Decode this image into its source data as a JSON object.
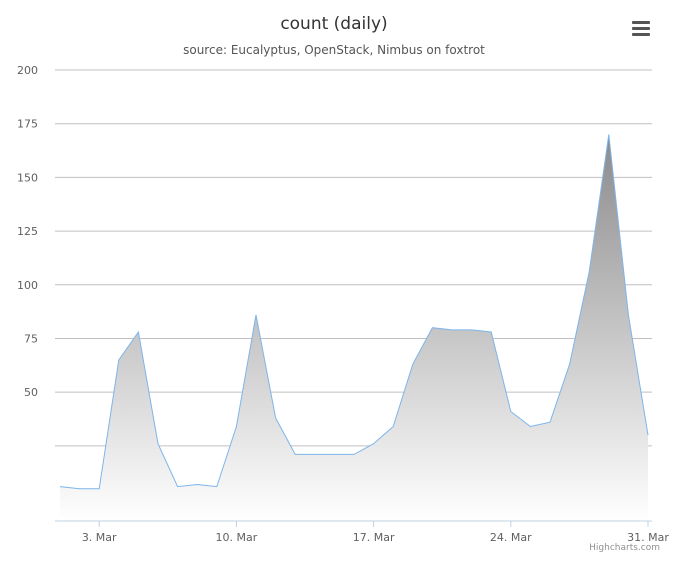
{
  "chart_data": {
    "type": "area",
    "title": "count (daily)",
    "subtitle": "source: Eucalyptus, OpenStack, Nimbus on foxtrot",
    "x": [
      "1. Mar",
      "2. Mar",
      "3. Mar",
      "4. Mar",
      "5. Mar",
      "6. Mar",
      "7. Mar",
      "8. Mar",
      "9. Mar",
      "10. Mar",
      "11. Mar",
      "12. Mar",
      "13. Mar",
      "14. Mar",
      "15. Mar",
      "16. Mar",
      "17. Mar",
      "18. Mar",
      "19. Mar",
      "20. Mar",
      "21. Mar",
      "22. Mar",
      "23. Mar",
      "24. Mar",
      "25. Mar",
      "26. Mar",
      "27. Mar",
      "28. Mar",
      "29. Mar",
      "30. Mar",
      "31. Mar"
    ],
    "values": [
      6,
      5,
      5,
      65,
      78,
      26,
      6,
      7,
      6,
      34,
      86,
      38,
      21,
      21,
      21,
      21,
      26,
      34,
      63,
      80,
      79,
      79,
      78,
      41,
      34,
      36,
      63,
      106,
      170,
      86,
      30
    ],
    "y_ticks": [
      "200",
      "175",
      "150",
      "125",
      "100",
      "75",
      "50"
    ],
    "x_ticks": [
      "3. Mar",
      "10. Mar",
      "17. Mar",
      "24. Mar",
      "31. Mar"
    ],
    "ylim": [
      -10,
      200
    ],
    "grid": true,
    "legend": "none",
    "line_color": "#7cb5ec",
    "fill_top_color": "#8a8a8a",
    "fill_bottom_color": "#ffffff"
  },
  "menu_icon": "hamburger-menu-icon",
  "credits": "Highcharts.com"
}
